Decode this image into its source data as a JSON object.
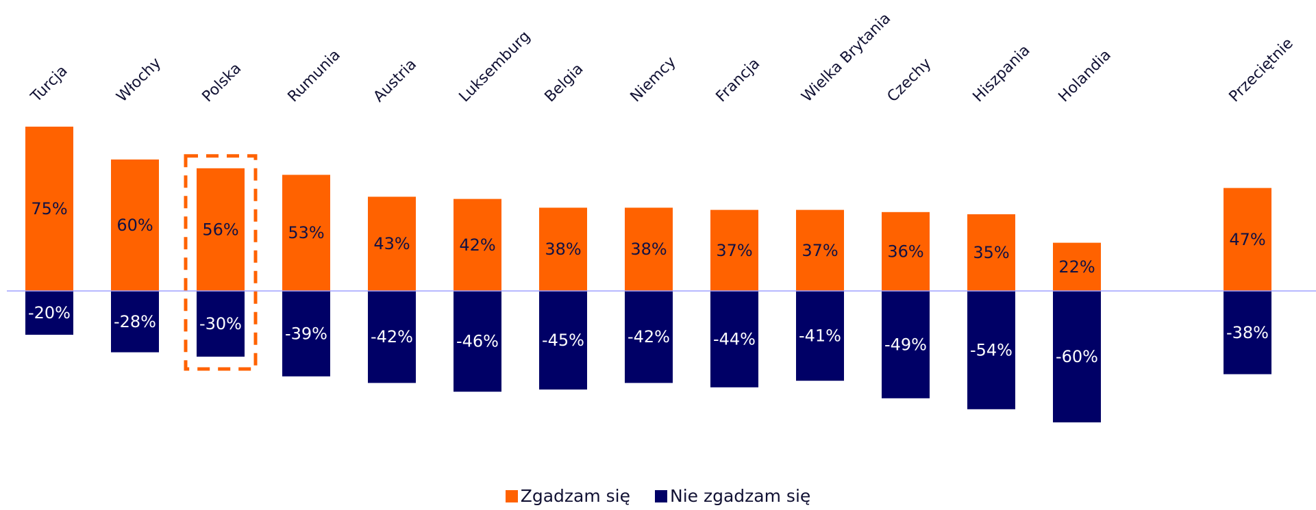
{
  "chart_data": {
    "type": "bar",
    "categories": [
      "Turcja",
      "Włochy",
      "Polska",
      "Rumunia",
      "Austria",
      "Luksemburg",
      "Belgia",
      "Niemcy",
      "Francja",
      "Wielka Brytania",
      "Czechy",
      "Hiszpania",
      "Holandia",
      "Przeciętnie"
    ],
    "series": [
      {
        "name": "Zgadzam się",
        "values": [
          75,
          60,
          56,
          53,
          43,
          42,
          38,
          38,
          37,
          37,
          36,
          35,
          22,
          47
        ],
        "labels": [
          "75%",
          "60%",
          "56%",
          "53%",
          "43%",
          "42%",
          "38%",
          "38%",
          "37%",
          "37%",
          "36%",
          "35%",
          "22%",
          "47%"
        ],
        "color": "#ff6200"
      },
      {
        "name": "Nie zgadzam się",
        "values": [
          -20,
          -28,
          -30,
          -39,
          -42,
          -46,
          -45,
          -42,
          -44,
          -41,
          -49,
          -54,
          -60,
          -38
        ],
        "labels": [
          "-20%",
          "-28%",
          "-30%",
          "-39%",
          "-42%",
          "-46%",
          "-45%",
          "-42%",
          "-44%",
          "-41%",
          "-49%",
          "-54%",
          "-60%",
          "-38%"
        ],
        "color": "#000066"
      }
    ],
    "highlighted_category": "Polska",
    "stacked": true,
    "legend_position": "bottom-center",
    "grid": false,
    "title": "",
    "xlabel": "",
    "ylabel": ""
  },
  "legend": {
    "agree_label": "Zgadzam się",
    "disagree_label": "Nie zgadzam się"
  },
  "colors": {
    "agree": "#ff6200",
    "disagree": "#000066",
    "baseline": "#9fa0ff",
    "highlight": "#ff6200",
    "label_on_orange": "#111144",
    "label_on_navy": "#ffffff"
  }
}
